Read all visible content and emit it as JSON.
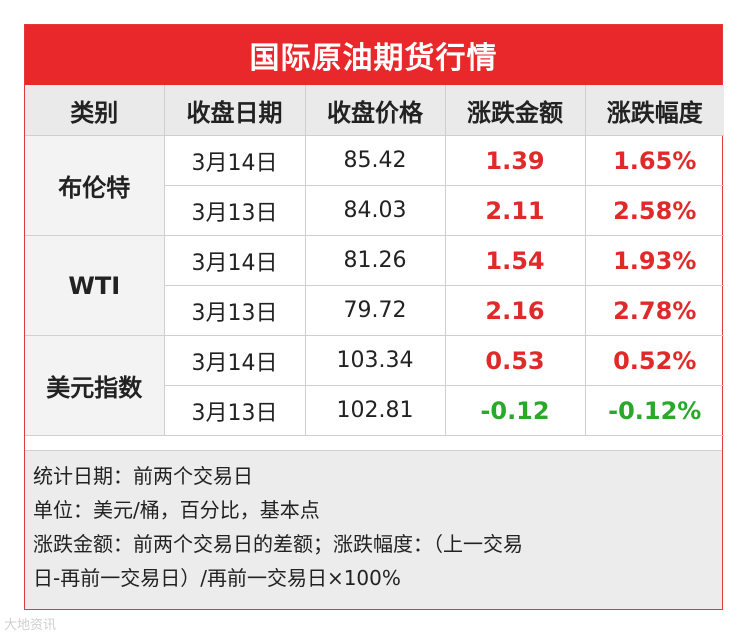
{
  "title": "国际原油期货行情",
  "headers": [
    "类别",
    "收盘日期",
    "收盘价格",
    "涨跌金额",
    "涨跌幅度"
  ],
  "groups": [
    {
      "category": "布伦特",
      "rows": [
        {
          "date": "3月14日",
          "price": "85.42",
          "change": "1.39",
          "pct": "1.65%",
          "direction": "up"
        },
        {
          "date": "3月13日",
          "price": "84.03",
          "change": "2.11",
          "pct": "2.58%",
          "direction": "up"
        }
      ]
    },
    {
      "category": "WTI",
      "rows": [
        {
          "date": "3月14日",
          "price": "81.26",
          "change": "1.54",
          "pct": "1.93%",
          "direction": "up"
        },
        {
          "date": "3月13日",
          "price": "79.72",
          "change": "2.16",
          "pct": "2.78%",
          "direction": "up"
        }
      ]
    },
    {
      "category": "美元指数",
      "rows": [
        {
          "date": "3月14日",
          "price": "103.34",
          "change": "0.53",
          "pct": "0.52%",
          "direction": "up"
        },
        {
          "date": "3月13日",
          "price": "102.81",
          "change": "-0.12",
          "pct": "-0.12%",
          "direction": "down"
        }
      ]
    }
  ],
  "notes": [
    "统计日期：前两个交易日",
    "单位：美元/桶，百分比，基本点",
    "涨跌金额：前两个交易日的差额；涨跌幅度：（上一交易",
    "日-再前一交易日）/再前一交易日×100%"
  ],
  "watermark": "大地资讯",
  "colors": {
    "title_bg": "#e8282b",
    "up": "#e02a2a",
    "down": "#2aa82a",
    "header_bg": "#eaeaea"
  }
}
